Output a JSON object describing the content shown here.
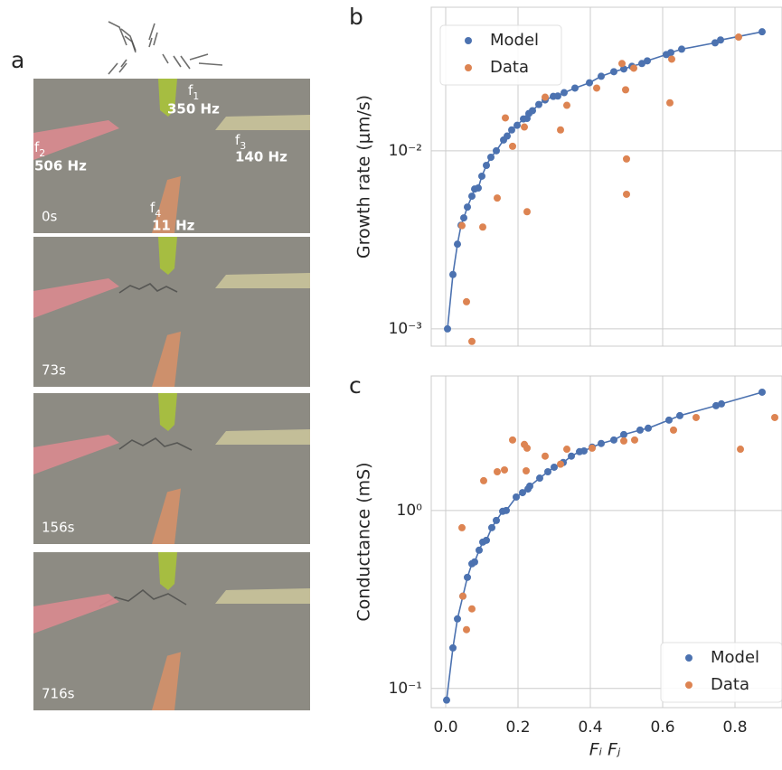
{
  "panel_a": {
    "label": "a",
    "frames": [
      "0s",
      "73s",
      "156s",
      "716s"
    ],
    "electrodes": [
      {
        "symbol": "f",
        "index": "1",
        "frequency": "350 Hz"
      },
      {
        "symbol": "f",
        "index": "2",
        "frequency": "506 Hz"
      },
      {
        "symbol": "f",
        "index": "3",
        "frequency": "140 Hz"
      },
      {
        "symbol": "f",
        "index": "4",
        "frequency": "11 Hz"
      }
    ]
  },
  "chart_data": [
    {
      "type": "scatter",
      "label": "b",
      "y_label": "Growth rate (μm/s)",
      "yscale": "log",
      "grid": true,
      "legend": "upper left",
      "show_xtick_labels": false,
      "xlim": [
        -0.04,
        0.93
      ],
      "xticks": [
        {
          "value": 0,
          "label": "0.0"
        },
        0.2,
        0.4,
        0.6,
        0.8
      ],
      "ylim": [
        0.0008,
        0.064
      ],
      "yticks": [
        {
          "value": 0.001,
          "label": "10⁻³"
        },
        {
          "value": 0.01,
          "label": "10⁻²"
        }
      ],
      "series": [
        {
          "name": "Model",
          "color": "#4c72b0",
          "line": true,
          "x": [
            0.005,
            0.02,
            0.0325,
            0.0425,
            0.05,
            0.06,
            0.0725,
            0.08,
            0.09,
            0.1,
            0.1125,
            0.125,
            0.14,
            0.16,
            0.17,
            0.1825,
            0.1975,
            0.215,
            0.225,
            0.23,
            0.24,
            0.2575,
            0.275,
            0.2975,
            0.31,
            0.3275,
            0.3575,
            0.3975,
            0.43,
            0.465,
            0.4925,
            0.515,
            0.5425,
            0.5575,
            0.61,
            0.6225,
            0.6525,
            0.745,
            0.76,
            0.875
          ],
          "values": [
            0.001,
            0.00202,
            0.00299,
            0.00382,
            0.0042,
            0.00483,
            0.00556,
            0.0061,
            0.00618,
            0.0072,
            0.00828,
            0.0092,
            0.01,
            0.0115,
            0.0121,
            0.0131,
            0.0139,
            0.0151,
            0.0152,
            0.0162,
            0.0168,
            0.0182,
            0.0193,
            0.0202,
            0.0203,
            0.0212,
            0.0225,
            0.0241,
            0.0262,
            0.0278,
            0.0288,
            0.0298,
            0.0309,
            0.032,
            0.0347,
            0.0356,
            0.0372,
            0.0404,
            0.0419,
            0.0466
          ]
        },
        {
          "name": "Data",
          "color": "#dd8452",
          "line": false,
          "x": [
            0.045,
            0.0575,
            0.0725,
            0.1025,
            0.1425,
            0.165,
            0.185,
            0.2175,
            0.225,
            0.275,
            0.3175,
            0.335,
            0.4175,
            0.4875,
            0.4975,
            0.5,
            0.5,
            0.52,
            0.625,
            0.62,
            0.81
          ],
          "values": [
            0.0038,
            0.00142,
            0.00085,
            0.00373,
            0.00543,
            0.0153,
            0.0106,
            0.0136,
            0.00455,
            0.02,
            0.0131,
            0.018,
            0.0225,
            0.0309,
            0.022,
            0.009,
            0.0057,
            0.0291,
            0.0327,
            0.0186,
            0.0435
          ]
        }
      ]
    },
    {
      "type": "scatter",
      "label": "c",
      "y_label": "Conductance (mS)",
      "x_label": "Fᵢ  Fⱼ",
      "yscale": "log",
      "grid": true,
      "legend": "lower right",
      "show_xtick_labels": true,
      "xlim": [
        -0.04,
        0.93
      ],
      "xticks": [
        {
          "value": 0,
          "label": "0.0"
        },
        0.2,
        0.4,
        0.6,
        0.8
      ],
      "ylim": [
        0.078,
        5.7
      ],
      "yticks": [
        {
          "value": 0.1,
          "label": "10⁻¹"
        },
        {
          "value": 1,
          "label": "10⁰"
        }
      ],
      "series": [
        {
          "name": "Model",
          "color": "#4c72b0",
          "line": true,
          "x": [
            0.0025,
            0.02,
            0.0325,
            0.0475,
            0.06,
            0.0725,
            0.08,
            0.0925,
            0.1025,
            0.1125,
            0.1275,
            0.14,
            0.1575,
            0.1675,
            0.195,
            0.2125,
            0.2275,
            0.2325,
            0.26,
            0.2825,
            0.3,
            0.325,
            0.3475,
            0.37,
            0.3825,
            0.405,
            0.43,
            0.465,
            0.4925,
            0.5375,
            0.56,
            0.6175,
            0.6475,
            0.7475,
            0.7625,
            0.875
          ],
          "values": [
            0.086,
            0.169,
            0.246,
            0.33,
            0.421,
            0.502,
            0.514,
            0.598,
            0.664,
            0.68,
            0.801,
            0.879,
            0.989,
            1.0,
            1.19,
            1.26,
            1.32,
            1.37,
            1.52,
            1.65,
            1.75,
            1.86,
            2.02,
            2.14,
            2.16,
            2.27,
            2.38,
            2.49,
            2.67,
            2.83,
            2.9,
            3.22,
            3.41,
            3.88,
            3.97,
            4.62
          ]
        },
        {
          "name": "Data",
          "color": "#dd8452",
          "line": false,
          "x": [
            0.045,
            0.0475,
            0.0575,
            0.0725,
            0.105,
            0.1425,
            0.1625,
            0.185,
            0.2175,
            0.2225,
            0.225,
            0.275,
            0.3175,
            0.335,
            0.405,
            0.4925,
            0.5225,
            0.63,
            0.6925,
            0.815,
            0.91
          ],
          "values": [
            0.8,
            0.33,
            0.214,
            0.28,
            1.47,
            1.65,
            1.69,
            2.49,
            2.35,
            1.67,
            2.24,
            2.02,
            1.82,
            2.21,
            2.24,
            2.46,
            2.49,
            2.83,
            3.33,
            2.21,
            3.33
          ]
        }
      ]
    }
  ]
}
